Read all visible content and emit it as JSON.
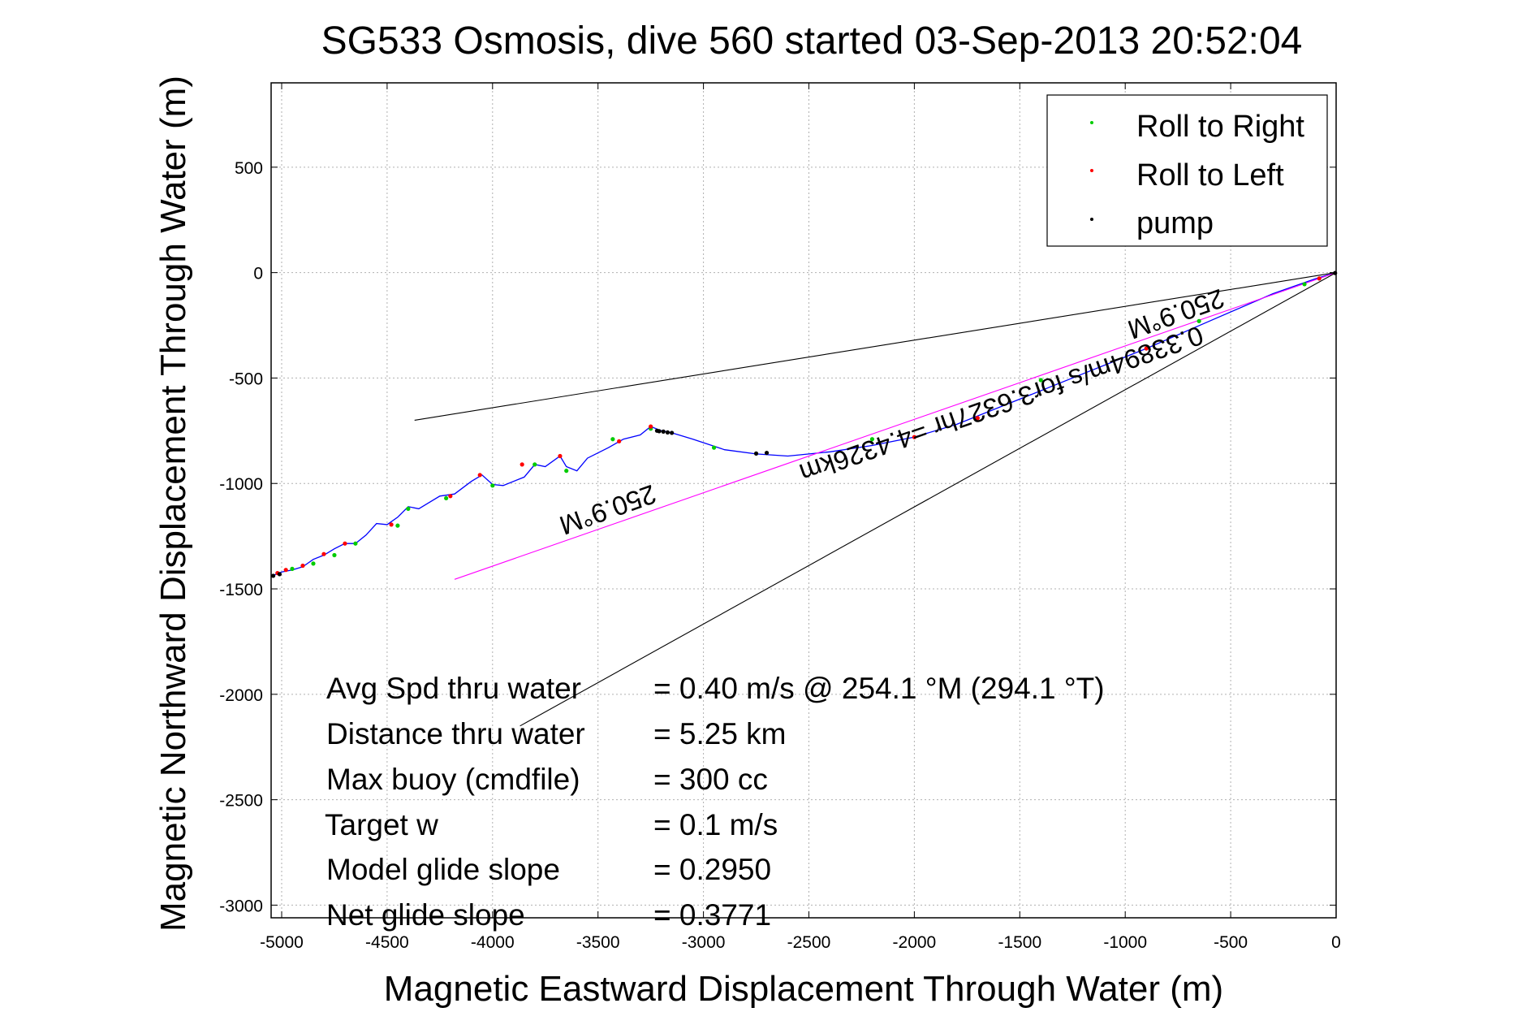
{
  "chart_data": {
    "type": "line",
    "title": "SG533 Osmosis, dive 560 started 03-Sep-2013 20:52:04",
    "xlabel": "Magnetic Eastward Displacement Through Water (m)",
    "ylabel": "Magnetic Northward Displacement Through Water (m)",
    "xlim": [
      -5050,
      0
    ],
    "ylim": [
      -3060,
      900
    ],
    "x_ticks": [
      -5000,
      -4500,
      -4000,
      -3500,
      -3000,
      -2500,
      -2000,
      -1500,
      -1000,
      -500,
      0
    ],
    "y_ticks": [
      500,
      0,
      -500,
      -1000,
      -1500,
      -2000,
      -2500,
      -3000
    ],
    "grid": true,
    "legend_position": "top-right",
    "legend": [
      {
        "label": "Roll to Right",
        "color": "#00cc00"
      },
      {
        "label": "Roll to Left",
        "color": "#ff0000"
      },
      {
        "label": "pump",
        "color": "#000000"
      }
    ],
    "series": [
      {
        "name": "track",
        "color": "#0000ff",
        "x": [
          0,
          -100,
          -200,
          -300,
          -600,
          -900,
          -1200,
          -1500,
          -1800,
          -2000,
          -2200,
          -2400,
          -2600,
          -2750,
          -2900,
          -3050,
          -3150,
          -3200,
          -3250,
          -3300,
          -3380,
          -3450,
          -3550,
          -3600,
          -3650,
          -3680,
          -3750,
          -3800,
          -3850,
          -3950,
          -4000,
          -4050,
          -4100,
          -4180,
          -4250,
          -4300,
          -4350,
          -4400,
          -4450,
          -4500,
          -4550,
          -4600,
          -4650,
          -4700,
          -4750,
          -4800,
          -4850,
          -4900,
          -4950,
          -5000,
          -5050
        ],
        "y": [
          0,
          -30,
          -65,
          -100,
          -230,
          -360,
          -480,
          -600,
          -720,
          -780,
          -820,
          -850,
          -870,
          -860,
          -840,
          -790,
          -760,
          -750,
          -730,
          -770,
          -790,
          -830,
          -880,
          -940,
          -920,
          -870,
          -920,
          -910,
          -970,
          -1010,
          -1005,
          -960,
          -990,
          -1050,
          -1060,
          -1090,
          -1120,
          -1110,
          -1160,
          -1195,
          -1190,
          -1245,
          -1285,
          -1285,
          -1310,
          -1340,
          -1360,
          -1395,
          -1410,
          -1420,
          -1440
        ]
      },
      {
        "name": "",
        "color": "#ff00ff",
        "x": [
          0,
          -4180
        ],
        "y": [
          0,
          -1455
        ]
      },
      {
        "name": "",
        "color": "#000000",
        "x": [
          0,
          -4370
        ],
        "y": [
          0,
          -700
        ]
      },
      {
        "name": "",
        "color": "#000000",
        "x": [
          0,
          -3870
        ],
        "y": [
          0,
          -2150
        ]
      }
    ],
    "roll_right_points": {
      "x": [
        -150,
        -650,
        -1400,
        -2200,
        -2950,
        -3250,
        -3430,
        -3650,
        -3800,
        -4000,
        -4220,
        -4400,
        -4450,
        -4650,
        -4750,
        -4850,
        -4950
      ],
      "y": [
        -55,
        -230,
        -510,
        -790,
        -830,
        -740,
        -790,
        -940,
        -910,
        -1010,
        -1070,
        -1120,
        -1200,
        -1285,
        -1340,
        -1380,
        -1405
      ]
    },
    "roll_left_points": {
      "x": [
        -80,
        -900,
        -1700,
        -2000,
        -3250,
        -3400,
        -3680,
        -3860,
        -4060,
        -4200,
        -4480,
        -4700,
        -4800,
        -4900,
        -4980,
        -5020
      ],
      "y": [
        -28,
        -360,
        -690,
        -780,
        -730,
        -800,
        -870,
        -910,
        -960,
        -1060,
        -1195,
        -1285,
        -1335,
        -1390,
        -1410,
        -1425
      ]
    },
    "pump_points": {
      "x": [
        -5,
        -2700,
        -2750,
        -3150,
        -3170,
        -3190,
        -3210,
        -3220,
        -5010,
        -5040
      ],
      "y": [
        -2,
        -855,
        -858,
        -760,
        -758,
        -754,
        -752,
        -750,
        -1430,
        -1438
      ]
    },
    "annotations": [
      "250.9°M",
      "0.33894m/s for3.6327hr =4.4326km",
      "250.9°M"
    ],
    "stats": [
      {
        "label": "Avg Spd thru water",
        "value": "=  0.40 m/s @ 254.1 °M (294.1 °T)"
      },
      {
        "label": "Distance thru water",
        "value": "=  5.25 km"
      },
      {
        "label": "Max buoy (cmdfile)",
        "value": "= 300 cc"
      },
      {
        "label": "Target w",
        "value": "= 0.1 m/s"
      },
      {
        "label": "Model glide slope",
        "value": "= 0.2950"
      },
      {
        "label": "Net glide slope",
        "value": "= 0.3771"
      }
    ]
  }
}
